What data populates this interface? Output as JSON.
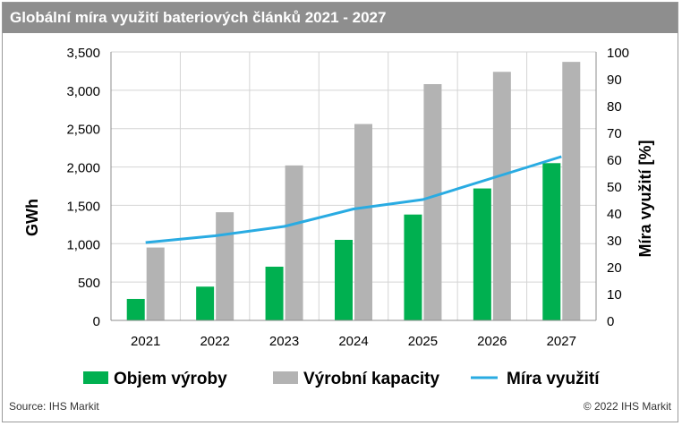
{
  "colors": {
    "production": "#00b050",
    "capacity": "#b3b3b3",
    "utilization": "#29abe2",
    "title_bg": "#8e8e8e"
  },
  "header": {
    "title": "Globální míra využití bateriových článků 2021 - 2027"
  },
  "footer": {
    "source": "Source: IHS Markit",
    "copyright": "© 2022 IHS Markit"
  },
  "chart_data": {
    "type": "bar",
    "title": "Globální míra využití bateriových článků 2021 - 2027",
    "categories": [
      "2021",
      "2022",
      "2023",
      "2024",
      "2025",
      "2026",
      "2027"
    ],
    "ylabel": "GWh",
    "ylim": [
      0,
      3500
    ],
    "yticks": [
      "0",
      "500",
      "1,000",
      "1,500",
      "2,000",
      "2,500",
      "3,000",
      "3,500"
    ],
    "y2label": "Míra využití [%]",
    "y2lim": [
      0,
      100
    ],
    "y2ticks": [
      "0",
      "10",
      "20",
      "30",
      "40",
      "50",
      "60",
      "70",
      "80",
      "90",
      "100"
    ],
    "grid": true,
    "legend_position": "bottom",
    "series": [
      {
        "name": "Objem výroby",
        "type": "bar",
        "axis": "left",
        "values": [
          280,
          440,
          700,
          1050,
          1380,
          1720,
          2050
        ]
      },
      {
        "name": "Výrobní kapacity",
        "type": "bar",
        "axis": "left",
        "values": [
          950,
          1410,
          2020,
          2560,
          3080,
          3240,
          3370
        ]
      },
      {
        "name": "Míra využití",
        "type": "line",
        "axis": "right",
        "values": [
          29,
          31.5,
          35,
          41.5,
          45,
          53,
          61
        ]
      }
    ]
  }
}
